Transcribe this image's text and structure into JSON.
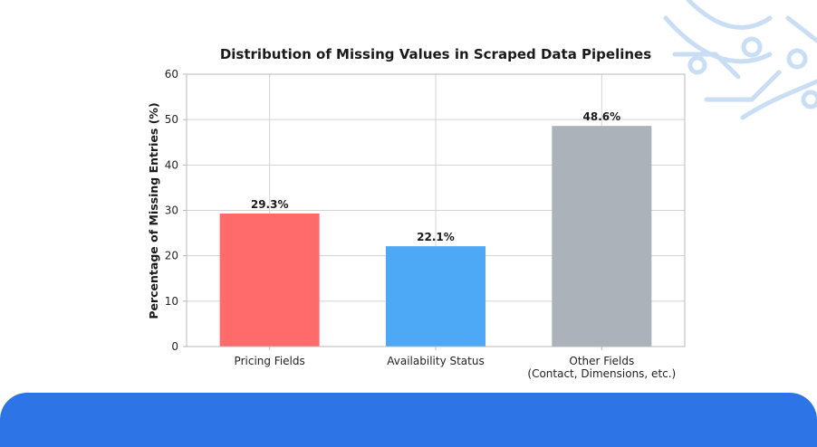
{
  "colors": {
    "footer": "#2d74e6",
    "grid": "#d3d3d3",
    "axes": "#b8b8b8",
    "decoration": "#c9def5"
  },
  "chart_data": {
    "type": "bar",
    "title": "Distribution of Missing Values in Scraped Data Pipelines",
    "xlabel": "",
    "ylabel": "Percentage of Missing Entries (%)",
    "ylim": [
      0,
      60
    ],
    "yticks": [
      0,
      10,
      20,
      30,
      40,
      50,
      60
    ],
    "grid": true,
    "categories": [
      [
        "Pricing Fields"
      ],
      [
        "Availability Status"
      ],
      [
        "Other Fields",
        "(Contact, Dimensions, etc.)"
      ]
    ],
    "values": [
      29.3,
      22.1,
      48.6
    ],
    "value_labels": [
      "29.3%",
      "22.1%",
      "48.6%"
    ],
    "bar_colors": [
      "#ff6b6b",
      "#4da8f5",
      "#abb2b9"
    ]
  }
}
